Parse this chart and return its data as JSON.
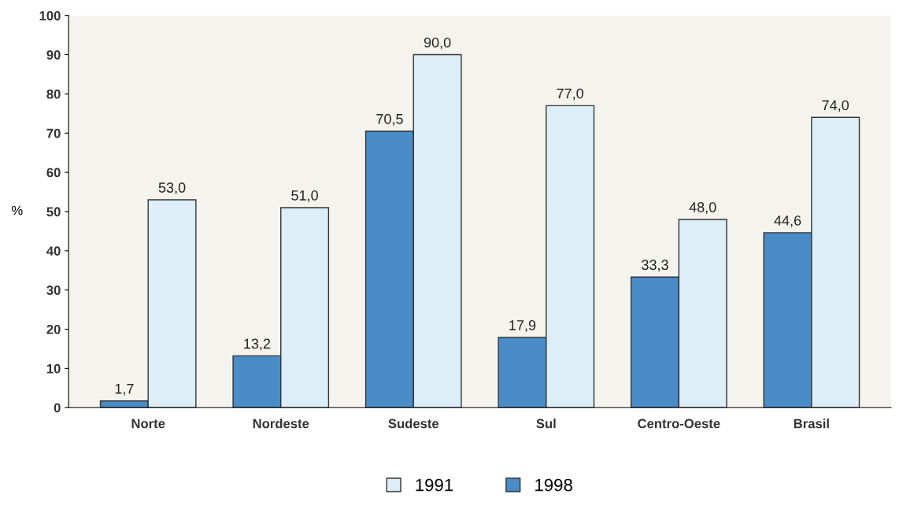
{
  "chart_data": {
    "type": "bar",
    "ylabel": "%",
    "categories": [
      "Norte",
      "Nordeste",
      "Sudeste",
      "Sul",
      "Centro-Oeste",
      "Brasil"
    ],
    "series": [
      {
        "name": "1998",
        "color": "#4a8cc8",
        "values": [
          1.7,
          13.2,
          70.5,
          17.9,
          33.3,
          44.6
        ],
        "value_labels": [
          "1,7",
          "13,2",
          "70,5",
          "17,9",
          "33,3",
          "44,6"
        ]
      },
      {
        "name": "1991",
        "color": "#dceef8",
        "values": [
          53.0,
          51.0,
          90.0,
          77.0,
          48.0,
          74.0
        ],
        "value_labels": [
          "53,0",
          "51,0",
          "90,0",
          "77,0",
          "48,0",
          "74,0"
        ]
      }
    ],
    "ylim": [
      0,
      100
    ],
    "yticks": [
      0,
      10,
      20,
      30,
      40,
      50,
      60,
      70,
      80,
      90,
      100
    ],
    "grid": false,
    "legend": "bottom"
  }
}
